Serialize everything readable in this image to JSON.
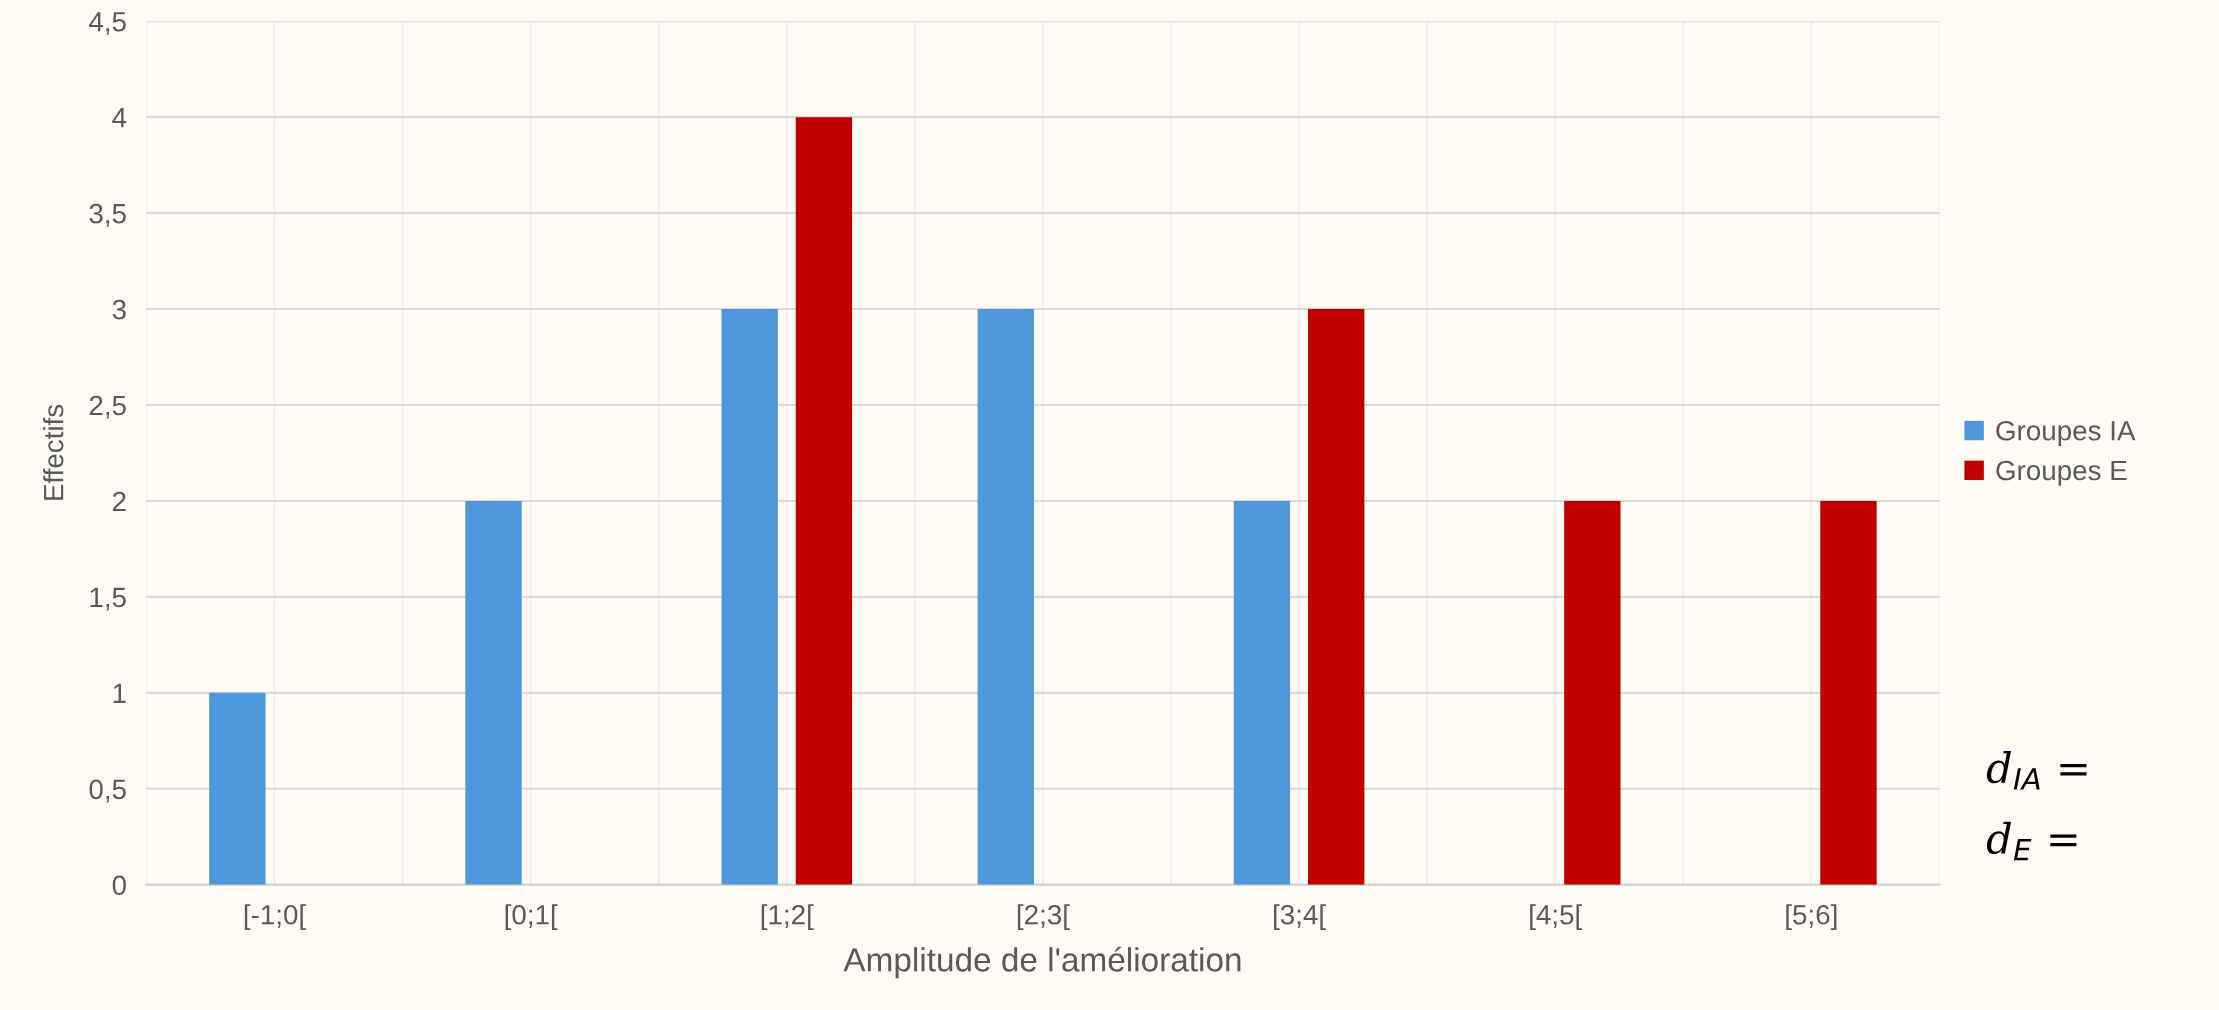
{
  "chart_data": {
    "type": "bar",
    "xlabel": "Amplitude de l'amélioration",
    "ylabel": "Effectifs",
    "categories": [
      "[-1;0[",
      "[0;1[",
      "[1;2[",
      "[2;3[",
      "[3;4[",
      "[4;5[",
      "[5;6]"
    ],
    "series": [
      {
        "name": "Groupes IA",
        "color": "#4f97db",
        "values": [
          1,
          2,
          3,
          3,
          2,
          0,
          0
        ]
      },
      {
        "name": "Groupes E",
        "color": "#c00000",
        "values": [
          0,
          0,
          4,
          0,
          3,
          2,
          2
        ]
      }
    ],
    "ylim": [
      0,
      4.5
    ],
    "yticks": [
      0,
      {
        "value": 0.5,
        "label": "0,5"
      },
      1,
      {
        "value": 1.5,
        "label": "1,5"
      },
      2,
      {
        "value": 2.5,
        "label": "2,5"
      },
      3,
      {
        "value": 3.5,
        "label": "3,5"
      },
      4,
      {
        "value": 4.5,
        "label": "4,5"
      }
    ],
    "grid": true,
    "legend": "right",
    "annotations": [
      "d$_{IA}$ =",
      "d$_{E}$ ="
    ]
  }
}
